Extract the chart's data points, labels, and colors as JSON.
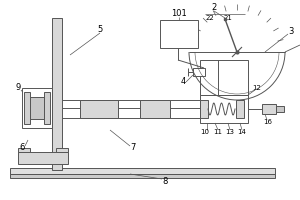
{
  "lc": "#555555",
  "lw": 0.7,
  "bg": "white",
  "figsize": [
    3.0,
    2.0
  ],
  "dpi": 100
}
